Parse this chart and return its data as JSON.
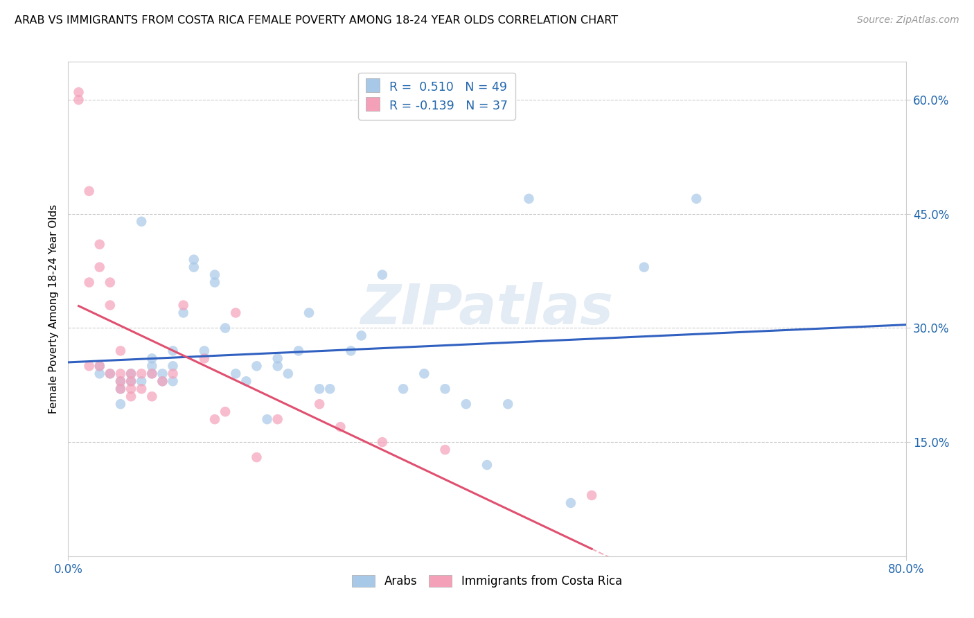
{
  "title": "ARAB VS IMMIGRANTS FROM COSTA RICA FEMALE POVERTY AMONG 18-24 YEAR OLDS CORRELATION CHART",
  "source": "Source: ZipAtlas.com",
  "ylabel": "Female Poverty Among 18-24 Year Olds",
  "xlim": [
    0.0,
    0.8
  ],
  "ylim": [
    0.0,
    0.65
  ],
  "ytick_positions": [
    0.15,
    0.3,
    0.45,
    0.6
  ],
  "ytick_labels": [
    "15.0%",
    "30.0%",
    "45.0%",
    "60.0%"
  ],
  "legend_blue_label": "Arabs",
  "legend_pink_label": "Immigrants from Costa Rica",
  "R_blue": "0.510",
  "N_blue": 49,
  "R_pink": "-0.139",
  "N_pink": 37,
  "blue_color": "#a8c8e8",
  "pink_color": "#f4a0b8",
  "line_blue_color": "#3060c0",
  "line_pink_color": "#e05070",
  "watermark": "ZIPatlas",
  "blue_x": [
    0.03,
    0.03,
    0.04,
    0.05,
    0.05,
    0.05,
    0.06,
    0.06,
    0.07,
    0.07,
    0.08,
    0.08,
    0.08,
    0.09,
    0.09,
    0.1,
    0.1,
    0.1,
    0.11,
    0.12,
    0.12,
    0.13,
    0.14,
    0.14,
    0.15,
    0.16,
    0.17,
    0.18,
    0.19,
    0.2,
    0.2,
    0.21,
    0.22,
    0.23,
    0.24,
    0.25,
    0.27,
    0.28,
    0.3,
    0.32,
    0.34,
    0.36,
    0.38,
    0.4,
    0.42,
    0.44,
    0.48,
    0.55,
    0.6
  ],
  "blue_y": [
    0.25,
    0.24,
    0.24,
    0.23,
    0.22,
    0.2,
    0.24,
    0.23,
    0.44,
    0.23,
    0.26,
    0.25,
    0.24,
    0.24,
    0.23,
    0.27,
    0.25,
    0.23,
    0.32,
    0.39,
    0.38,
    0.27,
    0.37,
    0.36,
    0.3,
    0.24,
    0.23,
    0.25,
    0.18,
    0.26,
    0.25,
    0.24,
    0.27,
    0.32,
    0.22,
    0.22,
    0.27,
    0.29,
    0.37,
    0.22,
    0.24,
    0.22,
    0.2,
    0.12,
    0.2,
    0.47,
    0.07,
    0.38,
    0.47
  ],
  "pink_x": [
    0.01,
    0.01,
    0.02,
    0.02,
    0.02,
    0.03,
    0.03,
    0.03,
    0.04,
    0.04,
    0.04,
    0.05,
    0.05,
    0.05,
    0.05,
    0.06,
    0.06,
    0.06,
    0.06,
    0.07,
    0.07,
    0.08,
    0.08,
    0.09,
    0.1,
    0.11,
    0.13,
    0.14,
    0.15,
    0.16,
    0.18,
    0.2,
    0.24,
    0.26,
    0.3,
    0.36,
    0.5
  ],
  "pink_y": [
    0.61,
    0.6,
    0.48,
    0.36,
    0.25,
    0.41,
    0.38,
    0.25,
    0.36,
    0.33,
    0.24,
    0.27,
    0.24,
    0.23,
    0.22,
    0.24,
    0.23,
    0.22,
    0.21,
    0.24,
    0.22,
    0.24,
    0.21,
    0.23,
    0.24,
    0.33,
    0.26,
    0.18,
    0.19,
    0.32,
    0.13,
    0.18,
    0.2,
    0.17,
    0.15,
    0.14,
    0.08
  ]
}
